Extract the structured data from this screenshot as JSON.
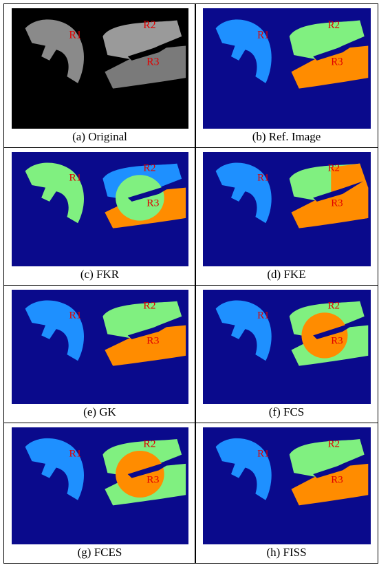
{
  "panels": [
    {
      "caption": "(a) Original",
      "labels": [
        "R1",
        "R2",
        "R3"
      ]
    },
    {
      "caption": "(b) Ref. Image",
      "labels": [
        "R1",
        "R2",
        "R3"
      ]
    },
    {
      "caption": "(c) FKR",
      "labels": [
        "R1",
        "R2",
        "R3"
      ]
    },
    {
      "caption": "(d) FKE",
      "labels": [
        "R1",
        "R2",
        "R3"
      ]
    },
    {
      "caption": "(e) GK",
      "labels": [
        "R1",
        "R2",
        "R3"
      ]
    },
    {
      "caption": "(f) FCS",
      "labels": [
        "R1",
        "R2",
        "R3"
      ]
    },
    {
      "caption": "(g) FCES",
      "labels": [
        "R1",
        "R2",
        "R3"
      ]
    },
    {
      "caption": "(h) FISS",
      "labels": [
        "R1",
        "R2",
        "R3"
      ]
    }
  ]
}
